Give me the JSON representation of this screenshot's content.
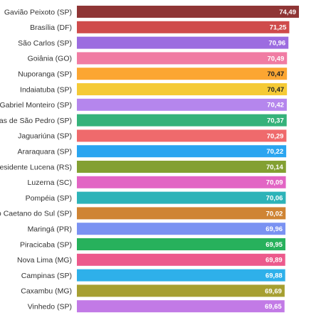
{
  "chart_data": {
    "type": "bar",
    "orientation": "horizontal",
    "title": "",
    "xlabel": "",
    "ylabel": "",
    "grid": false,
    "categories": [
      "Gavião Peixoto (SP)",
      "Brasília (DF)",
      "São Carlos (SP)",
      "Goiânia (GO)",
      "Nuporanga (SP)",
      "Indaiatuba (SP)",
      "Gabriel Monteiro (SP)",
      "Águas de São Pedro (SP)",
      "Jaguariúna (SP)",
      "Araraquara (SP)",
      "Presidente Lucena (RS)",
      "Luzerna (SC)",
      "Pompéia (SP)",
      "São Caetano do Sul (SP)",
      "Maringá (PR)",
      "Piracicaba (SP)",
      "Nova Lima (MG)",
      "Campinas (SP)",
      "Caxambu (MG)",
      "Vinhedo (SP)"
    ],
    "values": [
      74.49,
      71.25,
      70.96,
      70.49,
      70.47,
      70.47,
      70.42,
      70.37,
      70.29,
      70.22,
      70.14,
      70.09,
      70.06,
      70.02,
      69.96,
      69.95,
      69.89,
      69.88,
      69.69,
      69.65
    ],
    "value_labels": [
      "74,49",
      "71,25",
      "70,96",
      "70,49",
      "70,47",
      "70,47",
      "70,42",
      "70,37",
      "70,29",
      "70,22",
      "70,14",
      "70,09",
      "70,06",
      "70,02",
      "69,96",
      "69,95",
      "69,89",
      "69,88",
      "69,69",
      "69,65"
    ],
    "colors": [
      "#8f3535",
      "#cf4b4b",
      "#9c6ce0",
      "#f07ca3",
      "#fca632",
      "#f5ca36",
      "#b586ed",
      "#35b27a",
      "#ef6a6c",
      "#2aa5f0",
      "#83a032",
      "#e265c4",
      "#2db3b8",
      "#cf8434",
      "#7a92f2",
      "#27b15c",
      "#ec5a8c",
      "#2eb0ea",
      "#a69f31",
      "#c27ae6"
    ],
    "value_label_colors": [
      "#ffffff",
      "#ffffff",
      "#ffffff",
      "#ffffff",
      "#222222",
      "#222222",
      "#ffffff",
      "#ffffff",
      "#ffffff",
      "#ffffff",
      "#ffffff",
      "#ffffff",
      "#ffffff",
      "#ffffff",
      "#ffffff",
      "#ffffff",
      "#ffffff",
      "#ffffff",
      "#ffffff",
      "#ffffff"
    ],
    "xlim": [
      0,
      74.49
    ]
  }
}
